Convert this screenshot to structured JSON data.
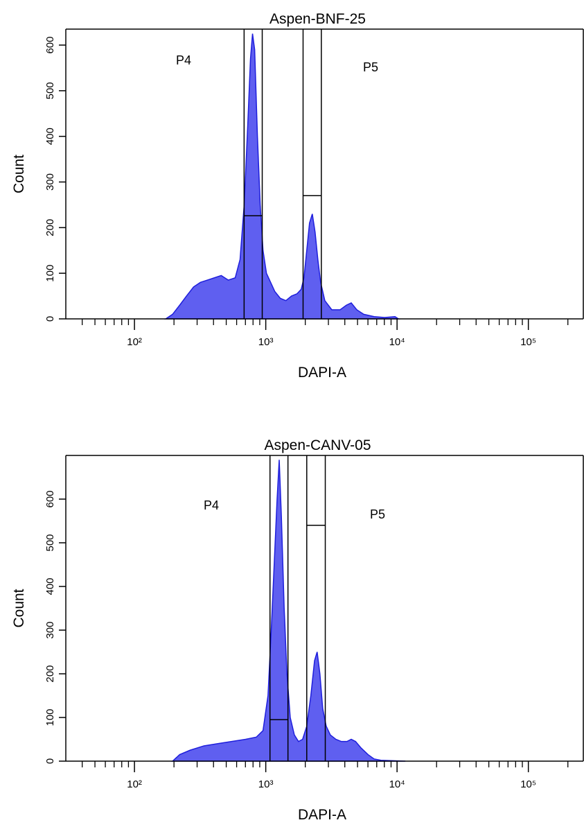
{
  "chart_data": [
    {
      "type": "area",
      "title": "Aspen-BNF-25",
      "x_label": "DAPI-A",
      "y_label": "Count",
      "xscale": "log",
      "xlim": [
        30,
        262144
      ],
      "ylim": [
        0,
        635
      ],
      "xticks": [
        {
          "value": 100,
          "label": "10²"
        },
        {
          "value": 1000,
          "label": "10³"
        },
        {
          "value": 10000,
          "label": "10⁴"
        },
        {
          "value": 100000,
          "label": "10⁵"
        }
      ],
      "xminorticks": [
        40,
        50,
        60,
        70,
        80,
        90,
        200,
        300,
        400,
        500,
        600,
        700,
        800,
        900,
        2000,
        3000,
        4000,
        5000,
        6000,
        7000,
        8000,
        9000,
        20000,
        30000,
        40000,
        50000,
        60000,
        70000,
        80000,
        90000,
        200000
      ],
      "yticks": [
        0,
        100,
        200,
        300,
        400,
        500,
        600
      ],
      "color": "#5f5ff0",
      "line_color": "#1e1edc",
      "x": [
        173,
        195,
        221,
        249,
        282,
        318,
        359,
        406,
        458,
        518,
        585,
        637,
        685,
        728,
        765,
        793,
        823,
        864,
        907,
        953,
        1012,
        1089,
        1172,
        1291,
        1423,
        1570,
        1730,
        1862,
        1954,
        2052,
        2154,
        2262,
        2375,
        2493,
        2618,
        2818,
        3185,
        3684,
        4111,
        4478,
        4936,
        5572,
        6687,
        8035,
        9645,
        10250
      ],
      "values": [
        0,
        10,
        30,
        50,
        70,
        80,
        85,
        90,
        95,
        85,
        90,
        130,
        250,
        420,
        570,
        625,
        590,
        400,
        250,
        150,
        100,
        80,
        60,
        45,
        40,
        50,
        55,
        65,
        90,
        150,
        210,
        230,
        190,
        130,
        80,
        40,
        20,
        20,
        30,
        35,
        20,
        10,
        5,
        3,
        5,
        0
      ],
      "gates": [
        {
          "name": "P4",
          "x": [
            684,
            940
          ],
          "y": 226
        },
        {
          "name": "P5",
          "x": [
            1924,
            2650
          ],
          "y": 270
        }
      ]
    },
    {
      "type": "area",
      "title": "Aspen-CANV-05",
      "x_label": "DAPI-A",
      "y_label": "Count",
      "xscale": "log",
      "xlim": [
        30,
        262144
      ],
      "ylim": [
        0,
        700
      ],
      "xticks": [
        {
          "value": 100,
          "label": "10²"
        },
        {
          "value": 1000,
          "label": "10³"
        },
        {
          "value": 10000,
          "label": "10⁴"
        },
        {
          "value": 100000,
          "label": "10⁵"
        }
      ],
      "xminorticks": [
        40,
        50,
        60,
        70,
        80,
        90,
        200,
        300,
        400,
        500,
        600,
        700,
        800,
        900,
        2000,
        3000,
        4000,
        5000,
        6000,
        7000,
        8000,
        9000,
        20000,
        30000,
        40000,
        50000,
        60000,
        70000,
        80000,
        90000,
        200000
      ],
      "yticks": [
        0,
        100,
        200,
        300,
        400,
        500,
        600
      ],
      "color": "#5f5ff0",
      "line_color": "#1e1edc",
      "x": [
        195,
        221,
        265,
        338,
        431,
        550,
        702,
        847,
        953,
        1040,
        1101,
        1159,
        1220,
        1266,
        1315,
        1381,
        1450,
        1536,
        1651,
        1775,
        1908,
        2052,
        2205,
        2352,
        2462,
        2584,
        2715,
        2887,
        3103,
        3418,
        3765,
        4151,
        4478,
        4830,
        5326,
        6013,
        6687,
        7540,
        11570
      ],
      "values": [
        0,
        15,
        25,
        35,
        40,
        45,
        50,
        55,
        70,
        150,
        300,
        450,
        600,
        690,
        560,
        350,
        200,
        100,
        60,
        45,
        50,
        80,
        150,
        230,
        250,
        200,
        120,
        80,
        60,
        50,
        45,
        45,
        50,
        45,
        30,
        15,
        5,
        2,
        0
      ],
      "gates": [
        {
          "name": "P4",
          "x": [
            1077,
            1476
          ],
          "y": 95
        },
        {
          "name": "P5",
          "x": [
            2052,
            2840
          ],
          "y": 540
        }
      ]
    }
  ]
}
